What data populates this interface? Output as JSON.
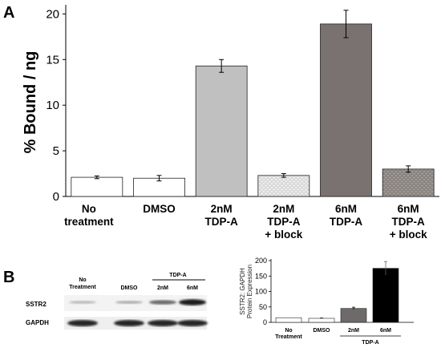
{
  "panel_a": {
    "label": "A"
  },
  "panel_b": {
    "label": "B"
  },
  "chart_data": [
    {
      "type": "bar",
      "ylabel": "% Bound / ng",
      "ylim": [
        0,
        21
      ],
      "yticks": [
        0,
        5,
        10,
        15,
        20
      ],
      "grid": false,
      "categories": [
        [
          "No",
          "treatment"
        ],
        [
          "DMSO"
        ],
        [
          "2nM",
          "TDP-A"
        ],
        [
          "2nM",
          "TDP-A",
          "+ block"
        ],
        [
          "6nM",
          "TDP-A"
        ],
        [
          "6nM",
          "TDP-A",
          "+ block"
        ]
      ],
      "values": [
        2.1,
        2.0,
        14.3,
        2.3,
        18.9,
        3.0
      ],
      "errors": [
        0.15,
        0.3,
        0.7,
        0.2,
        1.5,
        0.35
      ],
      "colors": [
        "#ffffff",
        "#ffffff",
        "#c0c0c0",
        "#d6d6d6",
        "#7a7270",
        "#8a8481"
      ],
      "patterned": [
        false,
        false,
        false,
        true,
        false,
        true
      ]
    },
    {
      "type": "bar",
      "ylabel": [
        "SSTR2: GAPDH",
        "Protein Expression"
      ],
      "ylim": [
        0,
        200
      ],
      "yticks": [
        0,
        50,
        100,
        150,
        200
      ],
      "grid": false,
      "categories": [
        [
          "No",
          "Treatment"
        ],
        [
          "DMSO"
        ],
        [
          "2nM"
        ],
        [
          "6nM"
        ]
      ],
      "group_label": "TDP-A",
      "values": [
        15,
        13,
        45,
        175
      ],
      "errors": [
        0,
        1,
        4,
        22
      ],
      "colors": [
        "#ffffff",
        "#ffffff",
        "#6e6a6a",
        "#000000"
      ]
    }
  ],
  "western_blot": {
    "lane_labels": [
      [
        "No",
        "Treatment"
      ],
      [
        "DMSO"
      ],
      [
        "2nM"
      ],
      [
        "6nM"
      ]
    ],
    "group_label": "TDP-A",
    "row_labels": [
      "SSTR2",
      "GAPDH"
    ],
    "sstr2_intensity": [
      0.25,
      0.3,
      0.6,
      0.95
    ],
    "gapdh_intensity": [
      0.92,
      0.92,
      0.92,
      0.92
    ]
  }
}
